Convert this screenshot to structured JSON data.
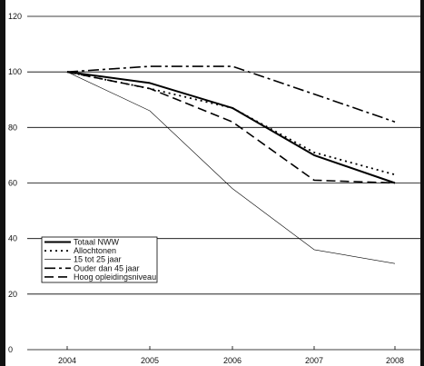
{
  "chart_data": {
    "type": "line",
    "x": [
      "2004",
      "2005",
      "2006",
      "2007",
      "2008"
    ],
    "ylim": [
      0,
      120
    ],
    "yticks": [
      0,
      20,
      40,
      60,
      80,
      100,
      120
    ],
    "grid": "horizontal",
    "legend_position": "bottom-left",
    "series": [
      {
        "name": "Totaal NWW",
        "values": [
          100,
          96,
          87,
          70,
          60
        ],
        "style": "solid-thick"
      },
      {
        "name": "Allochtonen",
        "values": [
          100,
          94,
          87,
          71,
          63
        ],
        "style": "dotted"
      },
      {
        "name": "15 tot 25 jaar",
        "values": [
          100,
          86,
          58,
          36,
          31
        ],
        "style": "thin"
      },
      {
        "name": "Ouder dan 45 jaar",
        "values": [
          100,
          102,
          102,
          92,
          82
        ],
        "style": "dash-dot"
      },
      {
        "name": "Hoog opleidingsniveau",
        "values": [
          100,
          94,
          82,
          61,
          60
        ],
        "style": "dashed"
      }
    ]
  },
  "colors": {
    "frame_background": "#111111",
    "plot_background": "#ffffff",
    "line_color": "#000000",
    "grid_color": "#000000"
  }
}
